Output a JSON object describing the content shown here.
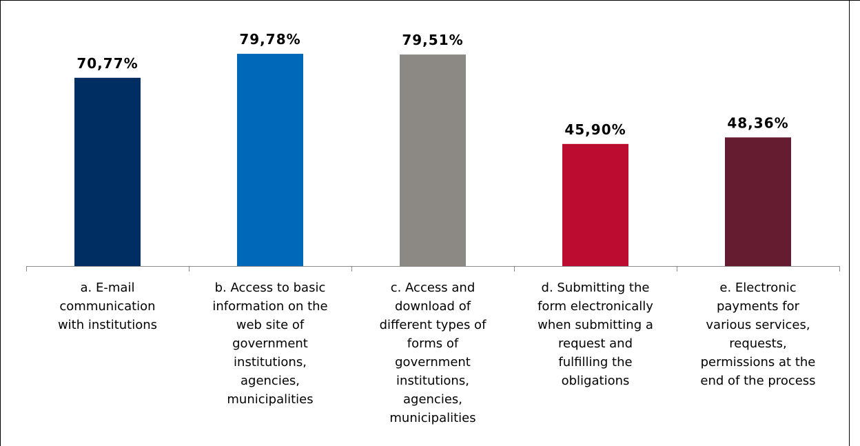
{
  "chart_data": {
    "type": "bar",
    "title": "",
    "xlabel": "",
    "ylabel": "",
    "ylim": [
      0,
      100
    ],
    "grid": false,
    "legend": "none",
    "categories": [
      "a. E-mail communication with institutions",
      "b. Access to basic information on the web site of government institutions, agencies, municipalities",
      "c. Access and download of different types of forms of government institutions, agencies, municipalities",
      "d. Submitting the form electronically when submitting a request and fulfilling the obligations",
      "e. Electronic payments for various services, requests, permissions at the end of the process"
    ],
    "category_lines": [
      [
        "a. E-mail",
        "communication",
        "with institutions"
      ],
      [
        "b. Access to basic",
        "information on the",
        "web site of",
        "government",
        "institutions,",
        "agencies,",
        "municipalities"
      ],
      [
        "c. Access and",
        "download of",
        "different types of",
        "forms of",
        "government",
        "institutions,",
        "agencies,",
        "municipalities"
      ],
      [
        "d. Submitting the",
        "form electronically",
        "when submitting a",
        "request and",
        "fulfilling the",
        "obligations"
      ],
      [
        "e. Electronic",
        "payments for",
        "various services,",
        "requests,",
        "permissions at the",
        "end of the process"
      ]
    ],
    "values": [
      70.77,
      79.78,
      79.51,
      45.9,
      48.36
    ],
    "value_labels": [
      "70,77%",
      "79,78%",
      "79,51%",
      "45,90%",
      "48,36%"
    ],
    "colors": [
      "#002D62",
      "#0068B8",
      "#8C8984",
      "#BC0D30",
      "#651C31"
    ]
  }
}
